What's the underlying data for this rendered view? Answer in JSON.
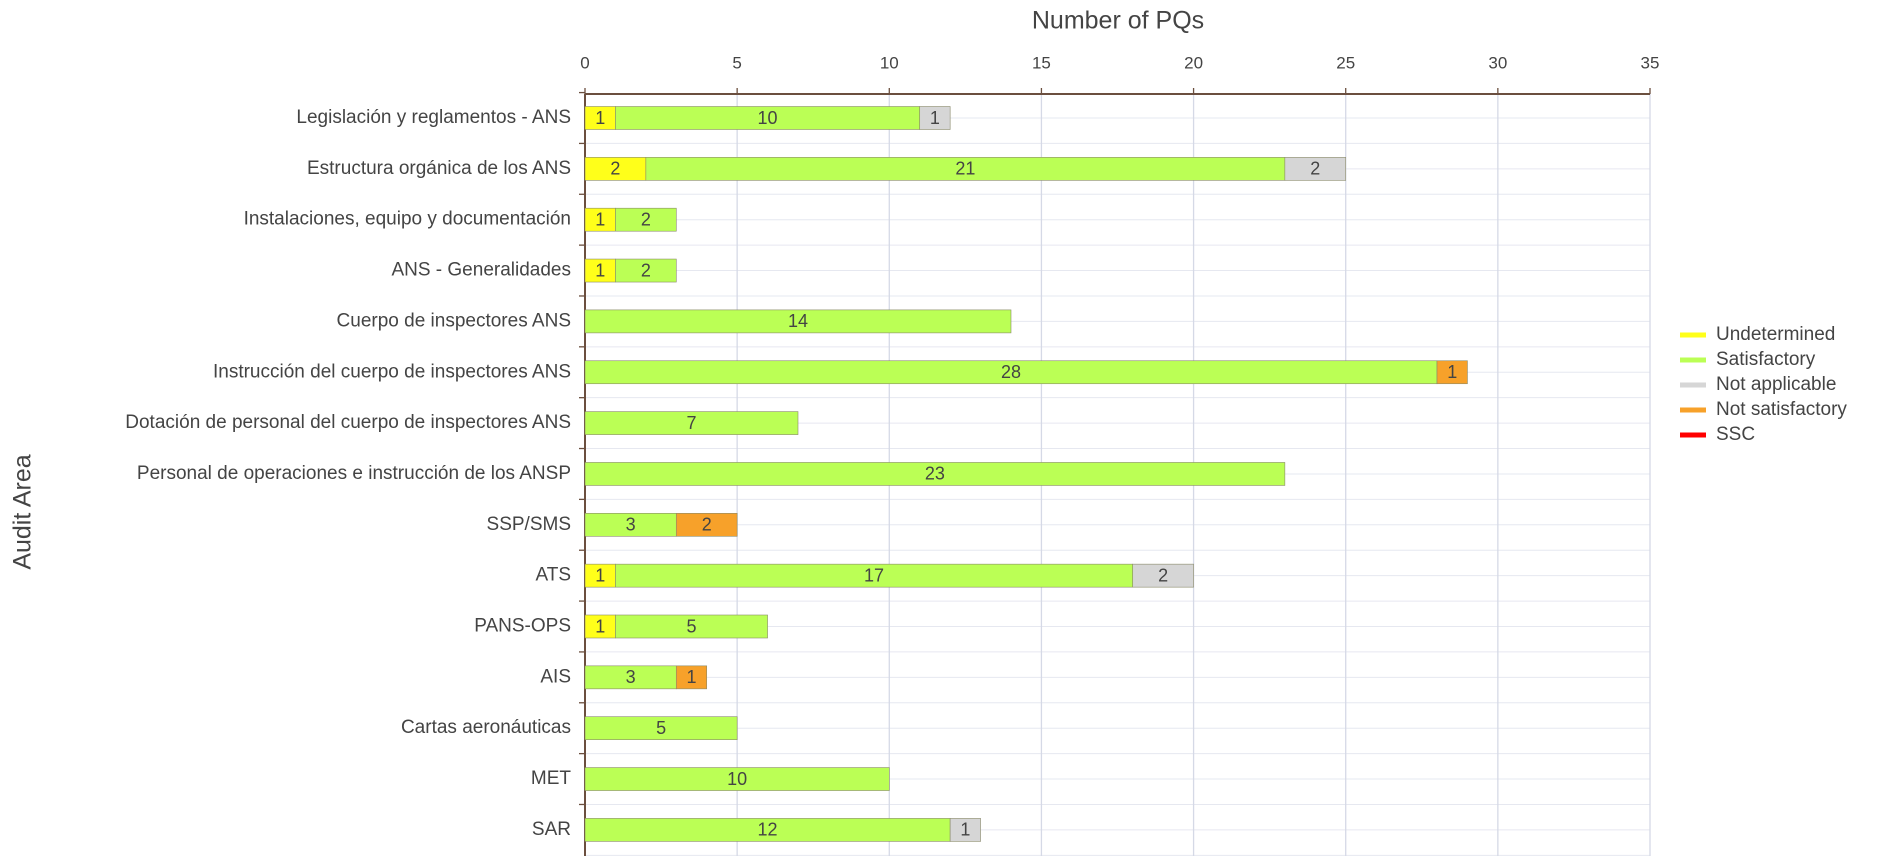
{
  "chart_data": {
    "type": "stacked-bar-horizontal",
    "x_label": "Number of PQs",
    "y_label": "Audit Area",
    "categories": [
      "Legislación y reglamentos - ANS",
      "Estructura orgánica de los ANS",
      "Instalaciones, equipo y documentación",
      "ANS - Generalidades",
      "Cuerpo de inspectores ANS",
      "Instrucción del cuerpo de inspectores ANS",
      "Dotación de personal del cuerpo de inspectores ANS",
      "Personal de operaciones e instrucción de los ANSP",
      "SSP/SMS",
      "ATS",
      "PANS-OPS",
      "AIS",
      "Cartas aeronáuticas",
      "MET",
      "SAR"
    ],
    "series": [
      {
        "name": "Undetermined",
        "color": "#ffff1a",
        "values": [
          1,
          2,
          1,
          1,
          null,
          null,
          null,
          null,
          null,
          1,
          1,
          null,
          null,
          null,
          null
        ]
      },
      {
        "name": "Satisfactory",
        "color": "#bbff55",
        "values": [
          10,
          21,
          2,
          2,
          14,
          28,
          7,
          23,
          3,
          17,
          5,
          3,
          5,
          10,
          12
        ]
      },
      {
        "name": "Not applicable",
        "color": "#d6d6d6",
        "values": [
          1,
          2,
          null,
          null,
          null,
          null,
          null,
          null,
          null,
          2,
          null,
          null,
          null,
          null,
          1
        ]
      },
      {
        "name": "Not satisfactory",
        "color": "#f7a12a",
        "values": [
          null,
          null,
          null,
          null,
          null,
          1,
          null,
          null,
          2,
          null,
          null,
          1,
          null,
          null,
          null
        ]
      },
      {
        "name": "SSC",
        "color": "#ff0000",
        "values": [
          null,
          null,
          null,
          null,
          null,
          null,
          null,
          null,
          null,
          null,
          null,
          null,
          null,
          null,
          null
        ]
      }
    ],
    "xlim": [
      0,
      35
    ],
    "xticks": [
      0,
      5,
      10,
      15,
      20,
      25,
      30,
      35
    ],
    "grid": true,
    "legend": "right"
  }
}
